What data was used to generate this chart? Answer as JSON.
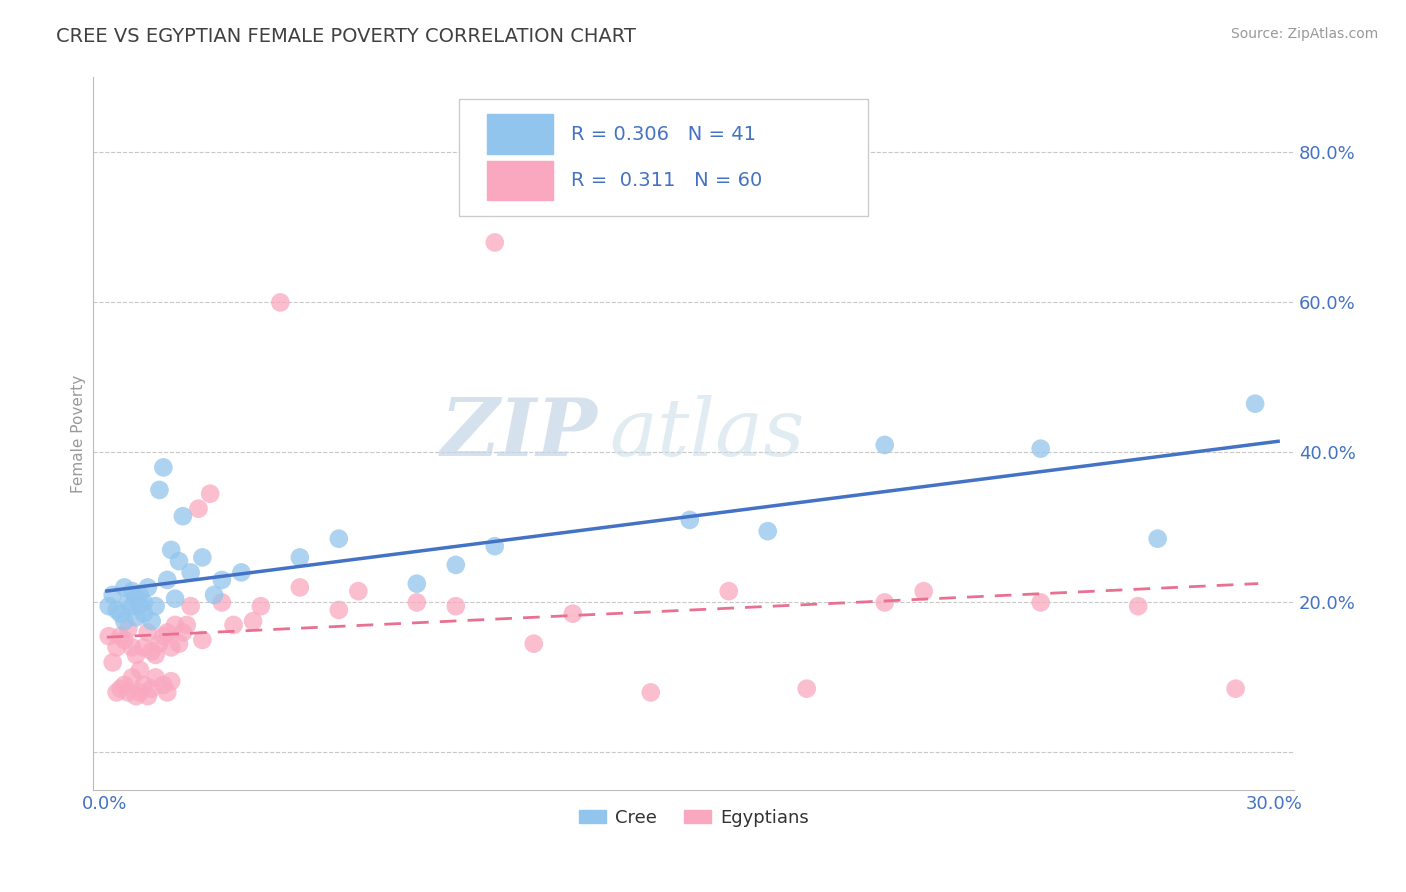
{
  "title": "CREE VS EGYPTIAN FEMALE POVERTY CORRELATION CHART",
  "source_text": "Source: ZipAtlas.com",
  "ylabel": "Female Poverty",
  "xlim": [
    -0.003,
    0.305
  ],
  "ylim": [
    -0.05,
    0.9
  ],
  "ytick_positions": [
    0.0,
    0.2,
    0.4,
    0.6,
    0.8
  ],
  "ytick_labels": [
    "",
    "20.0%",
    "40.0%",
    "60.0%",
    "80.0%"
  ],
  "cree_color": "#92C5ED",
  "egypt_color": "#F9A8C0",
  "cree_line_color": "#4472C4",
  "egypt_line_color": "#E87090",
  "egypt_line_style": "--",
  "cree_R": "0.306",
  "cree_N": "41",
  "egypt_R": "0.311",
  "egypt_N": "60",
  "watermark_zip": "ZIP",
  "watermark_atlas": "atlas",
  "background_color": "#ffffff",
  "grid_color": "#c8c8c8",
  "title_color": "#404040",
  "tick_color": "#4472C4",
  "legend_R_color": "#4472C4",
  "legend_text_color": "#000000",
  "cree_x": [
    0.001,
    0.002,
    0.003,
    0.004,
    0.005,
    0.005,
    0.006,
    0.007,
    0.007,
    0.008,
    0.008,
    0.009,
    0.009,
    0.01,
    0.01,
    0.011,
    0.012,
    0.013,
    0.014,
    0.015,
    0.016,
    0.017,
    0.018,
    0.019,
    0.02,
    0.022,
    0.025,
    0.028,
    0.03,
    0.035,
    0.05,
    0.06,
    0.08,
    0.09,
    0.1,
    0.15,
    0.17,
    0.2,
    0.24,
    0.27,
    0.295
  ],
  "cree_y": [
    0.195,
    0.21,
    0.19,
    0.185,
    0.22,
    0.175,
    0.2,
    0.195,
    0.215,
    0.18,
    0.205,
    0.195,
    0.21,
    0.185,
    0.2,
    0.22,
    0.175,
    0.195,
    0.35,
    0.38,
    0.23,
    0.27,
    0.205,
    0.255,
    0.315,
    0.24,
    0.26,
    0.21,
    0.23,
    0.24,
    0.26,
    0.285,
    0.225,
    0.25,
    0.275,
    0.31,
    0.295,
    0.41,
    0.405,
    0.285,
    0.465
  ],
  "egypt_x": [
    0.001,
    0.002,
    0.003,
    0.003,
    0.004,
    0.004,
    0.005,
    0.005,
    0.006,
    0.006,
    0.007,
    0.007,
    0.008,
    0.008,
    0.009,
    0.009,
    0.01,
    0.01,
    0.011,
    0.011,
    0.012,
    0.012,
    0.013,
    0.013,
    0.014,
    0.015,
    0.015,
    0.016,
    0.016,
    0.017,
    0.017,
    0.018,
    0.019,
    0.02,
    0.021,
    0.022,
    0.024,
    0.025,
    0.027,
    0.03,
    0.033,
    0.038,
    0.04,
    0.045,
    0.05,
    0.06,
    0.065,
    0.08,
    0.09,
    0.1,
    0.11,
    0.12,
    0.14,
    0.16,
    0.18,
    0.2,
    0.21,
    0.24,
    0.265,
    0.29
  ],
  "egypt_y": [
    0.155,
    0.12,
    0.14,
    0.08,
    0.155,
    0.085,
    0.15,
    0.09,
    0.165,
    0.08,
    0.14,
    0.1,
    0.13,
    0.075,
    0.11,
    0.08,
    0.14,
    0.09,
    0.16,
    0.075,
    0.135,
    0.085,
    0.13,
    0.1,
    0.145,
    0.155,
    0.09,
    0.16,
    0.08,
    0.14,
    0.095,
    0.17,
    0.145,
    0.16,
    0.17,
    0.195,
    0.325,
    0.15,
    0.345,
    0.2,
    0.17,
    0.175,
    0.195,
    0.6,
    0.22,
    0.19,
    0.215,
    0.2,
    0.195,
    0.68,
    0.145,
    0.185,
    0.08,
    0.215,
    0.085,
    0.2,
    0.215,
    0.2,
    0.195,
    0.085
  ]
}
